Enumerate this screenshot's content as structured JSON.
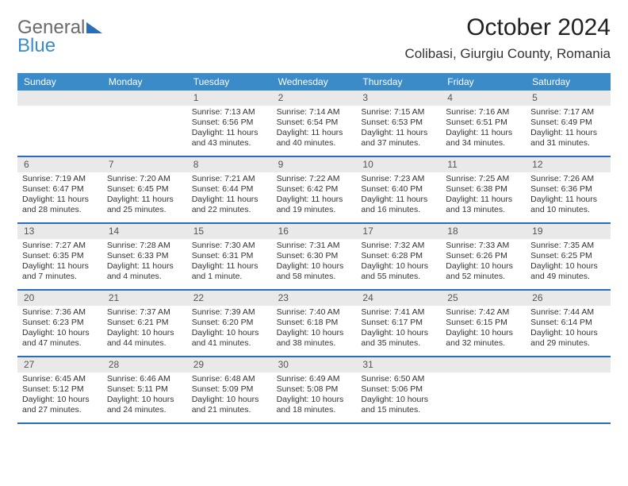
{
  "logo": {
    "word1": "General",
    "word2": "Blue"
  },
  "title": "October 2024",
  "location": "Colibasi, Giurgiu County, Romania",
  "colors": {
    "header_bg": "#3b8bc9",
    "border": "#2a6db8",
    "daynum_bg": "#e9e9e9",
    "text": "#333333",
    "logo_gray": "#6a6a6a",
    "logo_blue": "#3b8bc9"
  },
  "weekdays": [
    "Sunday",
    "Monday",
    "Tuesday",
    "Wednesday",
    "Thursday",
    "Friday",
    "Saturday"
  ],
  "first_weekday_index": 2,
  "days": [
    {
      "n": 1,
      "sunrise": "7:13 AM",
      "sunset": "6:56 PM",
      "dl1": "Daylight: 11 hours",
      "dl2": "and 43 minutes."
    },
    {
      "n": 2,
      "sunrise": "7:14 AM",
      "sunset": "6:54 PM",
      "dl1": "Daylight: 11 hours",
      "dl2": "and 40 minutes."
    },
    {
      "n": 3,
      "sunrise": "7:15 AM",
      "sunset": "6:53 PM",
      "dl1": "Daylight: 11 hours",
      "dl2": "and 37 minutes."
    },
    {
      "n": 4,
      "sunrise": "7:16 AM",
      "sunset": "6:51 PM",
      "dl1": "Daylight: 11 hours",
      "dl2": "and 34 minutes."
    },
    {
      "n": 5,
      "sunrise": "7:17 AM",
      "sunset": "6:49 PM",
      "dl1": "Daylight: 11 hours",
      "dl2": "and 31 minutes."
    },
    {
      "n": 6,
      "sunrise": "7:19 AM",
      "sunset": "6:47 PM",
      "dl1": "Daylight: 11 hours",
      "dl2": "and 28 minutes."
    },
    {
      "n": 7,
      "sunrise": "7:20 AM",
      "sunset": "6:45 PM",
      "dl1": "Daylight: 11 hours",
      "dl2": "and 25 minutes."
    },
    {
      "n": 8,
      "sunrise": "7:21 AM",
      "sunset": "6:44 PM",
      "dl1": "Daylight: 11 hours",
      "dl2": "and 22 minutes."
    },
    {
      "n": 9,
      "sunrise": "7:22 AM",
      "sunset": "6:42 PM",
      "dl1": "Daylight: 11 hours",
      "dl2": "and 19 minutes."
    },
    {
      "n": 10,
      "sunrise": "7:23 AM",
      "sunset": "6:40 PM",
      "dl1": "Daylight: 11 hours",
      "dl2": "and 16 minutes."
    },
    {
      "n": 11,
      "sunrise": "7:25 AM",
      "sunset": "6:38 PM",
      "dl1": "Daylight: 11 hours",
      "dl2": "and 13 minutes."
    },
    {
      "n": 12,
      "sunrise": "7:26 AM",
      "sunset": "6:36 PM",
      "dl1": "Daylight: 11 hours",
      "dl2": "and 10 minutes."
    },
    {
      "n": 13,
      "sunrise": "7:27 AM",
      "sunset": "6:35 PM",
      "dl1": "Daylight: 11 hours",
      "dl2": "and 7 minutes."
    },
    {
      "n": 14,
      "sunrise": "7:28 AM",
      "sunset": "6:33 PM",
      "dl1": "Daylight: 11 hours",
      "dl2": "and 4 minutes."
    },
    {
      "n": 15,
      "sunrise": "7:30 AM",
      "sunset": "6:31 PM",
      "dl1": "Daylight: 11 hours",
      "dl2": "and 1 minute."
    },
    {
      "n": 16,
      "sunrise": "7:31 AM",
      "sunset": "6:30 PM",
      "dl1": "Daylight: 10 hours",
      "dl2": "and 58 minutes."
    },
    {
      "n": 17,
      "sunrise": "7:32 AM",
      "sunset": "6:28 PM",
      "dl1": "Daylight: 10 hours",
      "dl2": "and 55 minutes."
    },
    {
      "n": 18,
      "sunrise": "7:33 AM",
      "sunset": "6:26 PM",
      "dl1": "Daylight: 10 hours",
      "dl2": "and 52 minutes."
    },
    {
      "n": 19,
      "sunrise": "7:35 AM",
      "sunset": "6:25 PM",
      "dl1": "Daylight: 10 hours",
      "dl2": "and 49 minutes."
    },
    {
      "n": 20,
      "sunrise": "7:36 AM",
      "sunset": "6:23 PM",
      "dl1": "Daylight: 10 hours",
      "dl2": "and 47 minutes."
    },
    {
      "n": 21,
      "sunrise": "7:37 AM",
      "sunset": "6:21 PM",
      "dl1": "Daylight: 10 hours",
      "dl2": "and 44 minutes."
    },
    {
      "n": 22,
      "sunrise": "7:39 AM",
      "sunset": "6:20 PM",
      "dl1": "Daylight: 10 hours",
      "dl2": "and 41 minutes."
    },
    {
      "n": 23,
      "sunrise": "7:40 AM",
      "sunset": "6:18 PM",
      "dl1": "Daylight: 10 hours",
      "dl2": "and 38 minutes."
    },
    {
      "n": 24,
      "sunrise": "7:41 AM",
      "sunset": "6:17 PM",
      "dl1": "Daylight: 10 hours",
      "dl2": "and 35 minutes."
    },
    {
      "n": 25,
      "sunrise": "7:42 AM",
      "sunset": "6:15 PM",
      "dl1": "Daylight: 10 hours",
      "dl2": "and 32 minutes."
    },
    {
      "n": 26,
      "sunrise": "7:44 AM",
      "sunset": "6:14 PM",
      "dl1": "Daylight: 10 hours",
      "dl2": "and 29 minutes."
    },
    {
      "n": 27,
      "sunrise": "6:45 AM",
      "sunset": "5:12 PM",
      "dl1": "Daylight: 10 hours",
      "dl2": "and 27 minutes."
    },
    {
      "n": 28,
      "sunrise": "6:46 AM",
      "sunset": "5:11 PM",
      "dl1": "Daylight: 10 hours",
      "dl2": "and 24 minutes."
    },
    {
      "n": 29,
      "sunrise": "6:48 AM",
      "sunset": "5:09 PM",
      "dl1": "Daylight: 10 hours",
      "dl2": "and 21 minutes."
    },
    {
      "n": 30,
      "sunrise": "6:49 AM",
      "sunset": "5:08 PM",
      "dl1": "Daylight: 10 hours",
      "dl2": "and 18 minutes."
    },
    {
      "n": 31,
      "sunrise": "6:50 AM",
      "sunset": "5:06 PM",
      "dl1": "Daylight: 10 hours",
      "dl2": "and 15 minutes."
    }
  ],
  "labels": {
    "sunrise_prefix": "Sunrise: ",
    "sunset_prefix": "Sunset: "
  }
}
